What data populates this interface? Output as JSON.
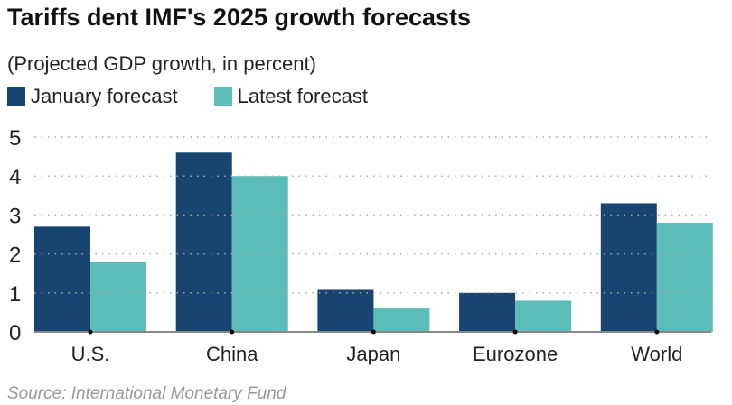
{
  "chart_data": {
    "type": "bar",
    "title": "Tariffs dent IMF's 2025 growth forecasts",
    "subtitle": "(Projected GDP growth, in percent)",
    "categories": [
      "U.S.",
      "China",
      "Japan",
      "Eurozone",
      "World"
    ],
    "series": [
      {
        "name": "January forecast",
        "color": "#17456f",
        "values": [
          2.7,
          4.6,
          1.1,
          1.0,
          3.3
        ]
      },
      {
        "name": "Latest forecast",
        "color": "#5bbcb8",
        "values": [
          1.8,
          4.0,
          0.6,
          0.8,
          2.8
        ]
      }
    ],
    "ylim": [
      0,
      5
    ],
    "yticks": [
      "0",
      "1",
      "2",
      "3",
      "4",
      "5"
    ],
    "xlabel": "",
    "ylabel": "",
    "grid": true,
    "legend_position": "top-left",
    "source": "Source: International Monetary Fund"
  }
}
